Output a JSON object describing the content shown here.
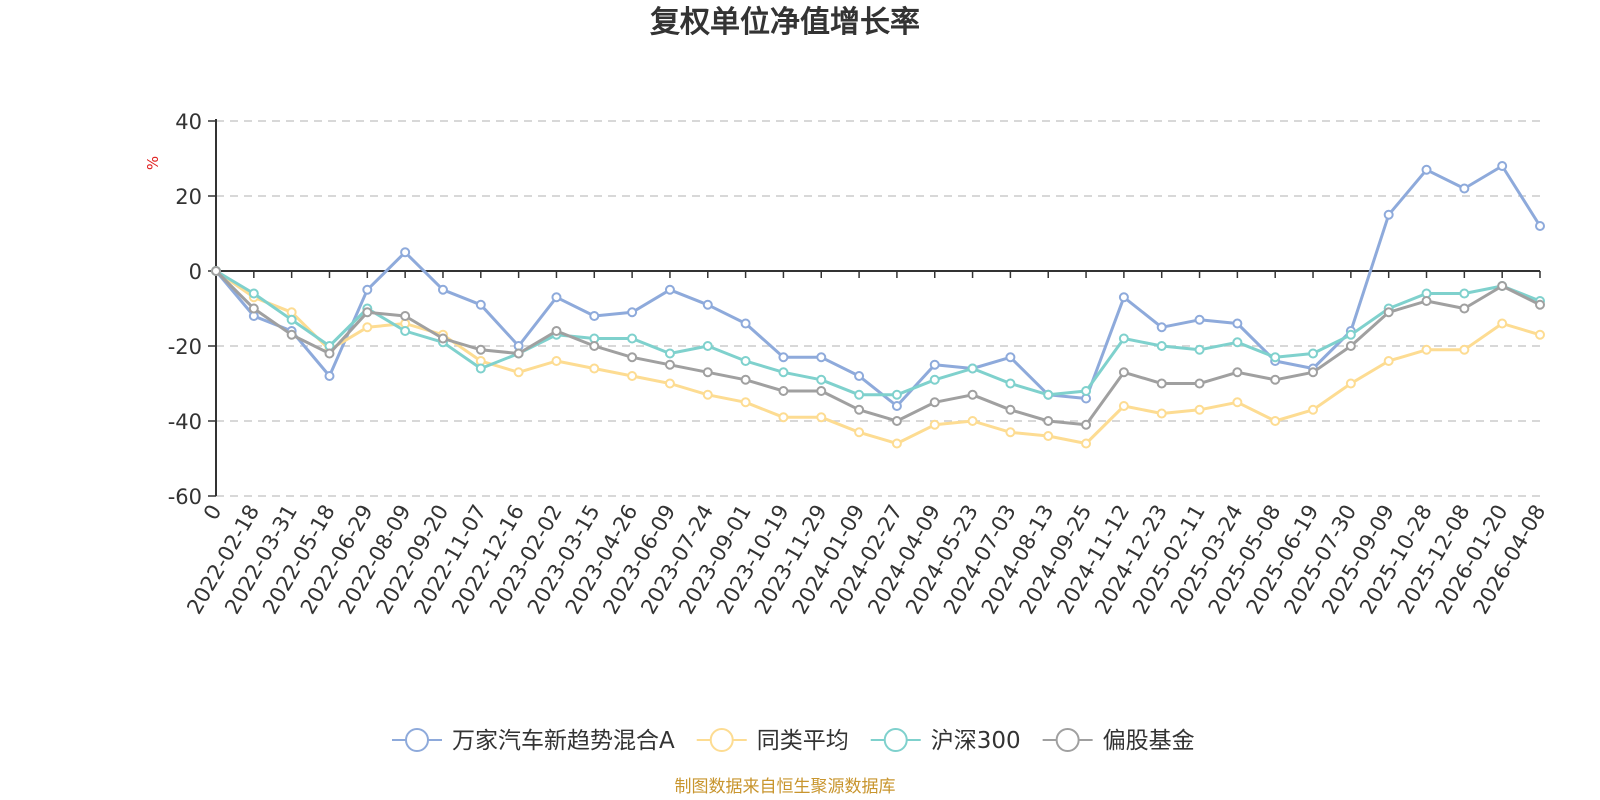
{
  "chart_data": {
    "type": "line",
    "title": "复权单位净值增长率",
    "unit": "%",
    "ylim": [
      -60,
      40
    ],
    "yticks": [
      40,
      20,
      0,
      -20,
      -40,
      -60
    ],
    "grid": true,
    "legend_position": "bottom",
    "x": [
      "0",
      "2022-02-18",
      "2022-03-31",
      "2022-05-18",
      "2022-06-29",
      "2022-08-09",
      "2022-09-20",
      "2022-11-07",
      "2022-12-16",
      "2023-02-02",
      "2023-03-15",
      "2023-04-26",
      "2023-06-09",
      "2023-07-24",
      "2023-09-01",
      "2023-10-19",
      "2023-11-29",
      "2024-01-09",
      "2024-02-27",
      "2024-04-09",
      "2024-05-23",
      "2024-07-03",
      "2024-08-13",
      "2024-09-25",
      "2024-11-12",
      "2024-12-23",
      "2025-02-11",
      "2025-03-24",
      "2025-05-08",
      "2025-06-19",
      "2025-07-30",
      "2025-09-09",
      "2025-10-28",
      "2025-12-08",
      "2026-01-20",
      "2026-04-08"
    ],
    "series": [
      {
        "name": "万家汽车新趋势混合A",
        "color": "#8eaadb",
        "values": [
          0,
          -12,
          -16,
          -28,
          -5,
          5,
          -5,
          -9,
          -20,
          -7,
          -12,
          -11,
          -5,
          -9,
          -14,
          -23,
          -23,
          -28,
          -36,
          -25,
          -26,
          -23,
          -33,
          -34,
          -7,
          -15,
          -13,
          -14,
          -24,
          -26,
          -16,
          15,
          27,
          22,
          28,
          12
        ]
      },
      {
        "name": "同类平均",
        "color": "#fddc92",
        "values": [
          0,
          -7,
          -11,
          -21,
          -15,
          -14,
          -17,
          -24,
          -27,
          -24,
          -26,
          -28,
          -30,
          -33,
          -35,
          -39,
          -39,
          -43,
          -46,
          -41,
          -40,
          -43,
          -44,
          -46,
          -36,
          -38,
          -37,
          -35,
          -40,
          -37,
          -30,
          -24,
          -21,
          -21,
          -14,
          -17
        ]
      },
      {
        "name": "沪深300",
        "color": "#7fd1cd",
        "values": [
          0,
          -6,
          -13,
          -20,
          -10,
          -16,
          -19,
          -26,
          -22,
          -17,
          -18,
          -18,
          -22,
          -20,
          -24,
          -27,
          -29,
          -33,
          -33,
          -29,
          -26,
          -30,
          -33,
          -32,
          -18,
          -20,
          -21,
          -19,
          -23,
          -22,
          -17,
          -10,
          -6,
          -6,
          -4,
          -8
        ]
      },
      {
        "name": "偏股基金",
        "color": "#a0a0a0",
        "values": [
          0,
          -10,
          -17,
          -22,
          -11,
          -12,
          -18,
          -21,
          -22,
          -16,
          -20,
          -23,
          -25,
          -27,
          -29,
          -32,
          -32,
          -37,
          -40,
          -35,
          -33,
          -37,
          -40,
          -41,
          -27,
          -30,
          -30,
          -27,
          -29,
          -27,
          -20,
          -11,
          -8,
          -10,
          -4,
          -9
        ]
      }
    ]
  },
  "source_note": "制图数据来自恒生聚源数据库"
}
